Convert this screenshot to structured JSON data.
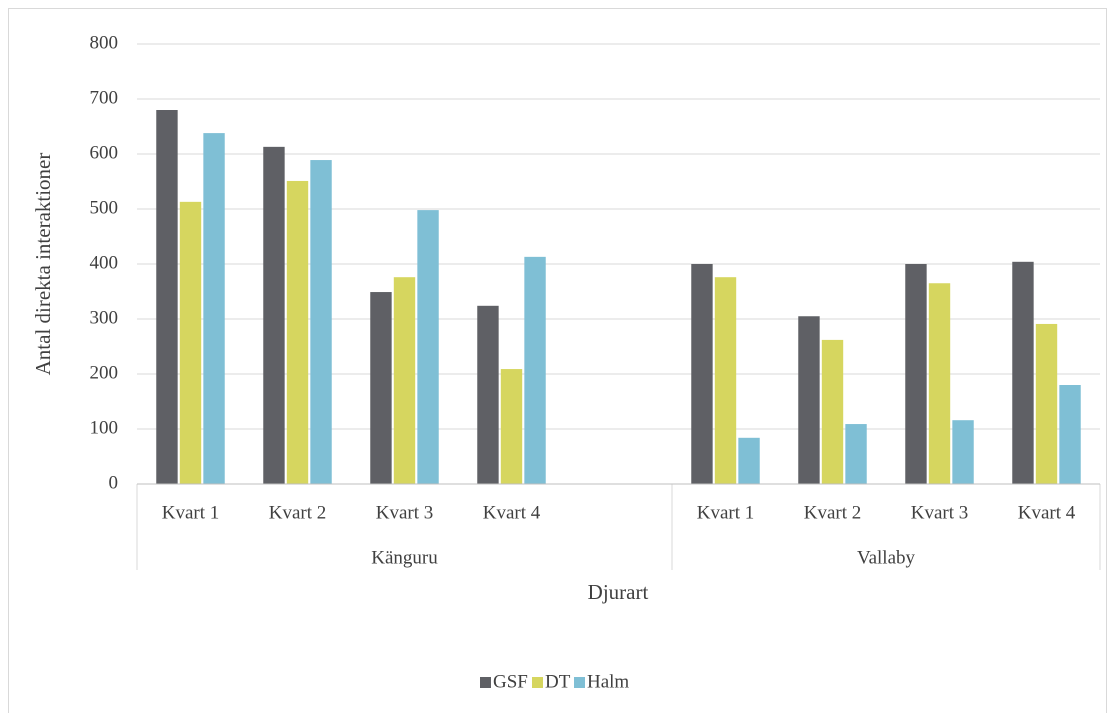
{
  "chart_data": {
    "type": "bar",
    "y_label": "Antal direkta interaktioner",
    "x_label": "Djurart",
    "groups": [
      {
        "name": "Känguru",
        "categories": [
          "Kvart 1",
          "Kvart 2",
          "Kvart 3",
          "Kvart 4",
          null
        ]
      },
      {
        "name": "Vallaby",
        "categories": [
          "Kvart 1",
          "Kvart 2",
          "Kvart 3",
          "Kvart 4"
        ]
      }
    ],
    "series": [
      {
        "name": "GSF",
        "color": "#5f6065",
        "values": [
          680,
          613,
          349,
          324,
          null,
          400,
          305,
          400,
          404
        ]
      },
      {
        "name": "DT",
        "color": "#d6d65f",
        "values": [
          513,
          551,
          376,
          209,
          null,
          376,
          262,
          365,
          291
        ]
      },
      {
        "name": "Halm",
        "color": "#7fbfd5",
        "values": [
          638,
          589,
          498,
          413,
          null,
          84,
          109,
          116,
          180
        ]
      }
    ],
    "ylim": [
      0,
      800
    ],
    "yticks": [
      0,
      100,
      200,
      300,
      400,
      500,
      600,
      700,
      800
    ],
    "grid": true,
    "legend": "bottom"
  }
}
